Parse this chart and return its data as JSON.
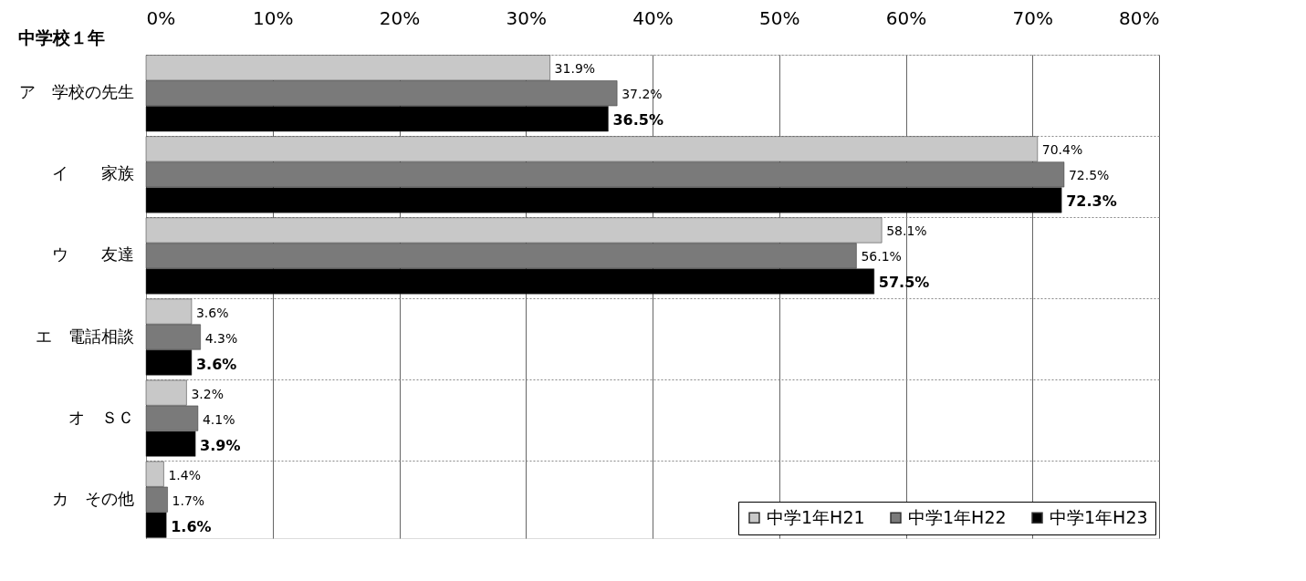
{
  "chart_data": {
    "type": "bar",
    "orientation": "horizontal",
    "title": "中学校１年",
    "categories": [
      "ア　学校の先生",
      "イ　　家族",
      "ウ　　友達",
      "エ　電話相談",
      "オ　ＳＣ",
      "カ　その他"
    ],
    "series": [
      {
        "name": "中学1年H21",
        "color": "#c8c8c8",
        "values": [
          31.9,
          70.4,
          58.1,
          3.6,
          3.2,
          1.4
        ],
        "value_labels": [
          "31.9%",
          "70.4%",
          "58.1%",
          "3.6%",
          "3.2%",
          "1.4%"
        ]
      },
      {
        "name": "中学1年H22",
        "color": "#7a7a7a",
        "values": [
          37.2,
          72.5,
          56.1,
          4.3,
          4.1,
          1.7
        ],
        "value_labels": [
          "37.2%",
          "72.5%",
          "56.1%",
          "4.3%",
          "4.1%",
          "1.7%"
        ]
      },
      {
        "name": "中学1年H23",
        "color": "#000000",
        "values": [
          36.5,
          72.3,
          57.5,
          3.6,
          3.9,
          1.6
        ],
        "value_labels": [
          "36.5%",
          "72.3%",
          "57.5%",
          "3.6%",
          "3.9%",
          "1.6%"
        ]
      }
    ],
    "xlim": [
      0,
      80
    ],
    "xticks": [
      {
        "value": 0,
        "label": "0%"
      },
      {
        "value": 10,
        "label": "10%"
      },
      {
        "value": 20,
        "label": "20%"
      },
      {
        "value": 30,
        "label": "30%"
      },
      {
        "value": 40,
        "label": "40%"
      },
      {
        "value": 50,
        "label": "50%"
      },
      {
        "value": 60,
        "label": "60%"
      },
      {
        "value": 70,
        "label": "70%"
      },
      {
        "value": 80,
        "label": "80%"
      }
    ],
    "grid": true,
    "legend": "bottom right"
  }
}
